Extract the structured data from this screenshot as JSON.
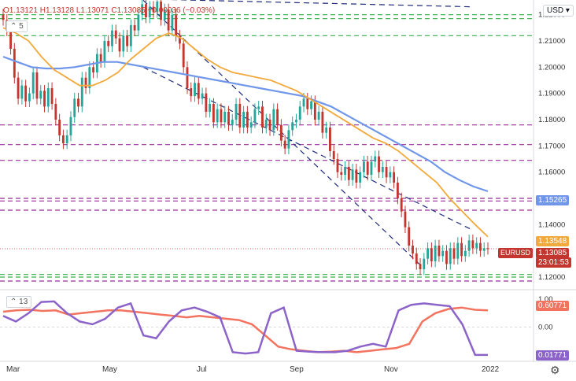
{
  "header": {
    "open": "O1.13121",
    "high": "H1.13128",
    "low": "L1.13071",
    "close": "C1.13085",
    "change": "−0.00036 (−0.03%)",
    "sma_len": "5",
    "osc_len": "13",
    "currency": "USD"
  },
  "tags": {
    "price_level": "1.15265",
    "ma_level": "1.13548",
    "symbol": "EURUSD",
    "last_price": "1.13085",
    "countdown": "23:01:53",
    "osc_a": "0.60771",
    "osc_b": "0.01771"
  },
  "colors": {
    "up": "#26a69a",
    "down": "#c2362f",
    "sma_fast": "#f2a93b",
    "sma_slow": "#6f96e8",
    "channel": "#1f2a7a",
    "green_level": "#36b04a",
    "purple_level": "#9b2a9b",
    "osc_a": "#f2735f",
    "osc_b": "#8b63c9"
  },
  "chart_data": {
    "type": "line",
    "symbol": "EURUSD",
    "y_ticks": [
      "1.22000",
      "1.21000",
      "1.20000",
      "1.19000",
      "1.18000",
      "1.17000",
      "1.16000",
      "1.15000",
      "1.14000",
      "1.12000"
    ],
    "ylim": [
      1.117,
      1.225
    ],
    "x_ticks": [
      "Mar",
      "May",
      "Jul",
      "Sep",
      "Nov",
      "2022"
    ],
    "osc_ticks": [
      "1.00",
      "0.00",
      "-1.00"
    ],
    "osc_ylim": [
      -1.2,
      1.2
    ],
    "horizontal_levels": {
      "green": [
        1.22,
        1.2185,
        1.212,
        1.121,
        1.12
      ],
      "purple": [
        1.178,
        1.1705,
        1.1645,
        1.15,
        1.149,
        1.1455,
        1.1185
      ]
    },
    "close_path": [
      1.218,
      1.214,
      1.207,
      1.196,
      1.188,
      1.193,
      1.187,
      1.19,
      1.198,
      1.188,
      1.191,
      1.185,
      1.192,
      1.186,
      1.18,
      1.174,
      1.171,
      1.174,
      1.181,
      1.188,
      1.185,
      1.196,
      1.192,
      1.2,
      1.198,
      1.205,
      1.202,
      1.21,
      1.208,
      1.214,
      1.211,
      1.206,
      1.212,
      1.208,
      1.216,
      1.214,
      1.22,
      1.224,
      1.219,
      1.223,
      1.221,
      1.225,
      1.218,
      1.222,
      1.214,
      1.22,
      1.212,
      1.209,
      1.2,
      1.192,
      1.189,
      1.194,
      1.188,
      1.19,
      1.183,
      1.186,
      1.179,
      1.184,
      1.179,
      1.183,
      1.178,
      1.18,
      1.186,
      1.177,
      1.183,
      1.177,
      1.179,
      1.184,
      1.185,
      1.177,
      1.18,
      1.176,
      1.184,
      1.178,
      1.172,
      1.169,
      1.176,
      1.179,
      1.18,
      1.185,
      1.188,
      1.184,
      1.187,
      1.18,
      1.183,
      1.175,
      1.177,
      1.168,
      1.165,
      1.16,
      1.159,
      1.162,
      1.157,
      1.161,
      1.156,
      1.16,
      1.164,
      1.159,
      1.164,
      1.166,
      1.16,
      1.162,
      1.158,
      1.16,
      1.156,
      1.15,
      1.145,
      1.139,
      1.132,
      1.129,
      1.125,
      1.123,
      1.127,
      1.131,
      1.126,
      1.132,
      1.128,
      1.13,
      1.125,
      1.131,
      1.127,
      1.133,
      1.128,
      1.13,
      1.134,
      1.131,
      1.133,
      1.13,
      1.131,
      1.1308
    ],
    "sma_fast": [
      1.215,
      1.213,
      1.21,
      1.204,
      1.199,
      1.196,
      1.193,
      1.193,
      1.195,
      1.198,
      1.203,
      1.207,
      1.211,
      1.213,
      1.211,
      1.207,
      1.203,
      1.2,
      1.198,
      1.197,
      1.196,
      1.195,
      1.193,
      1.191,
      1.188,
      1.185,
      1.182,
      1.179,
      1.176,
      1.173,
      1.171,
      1.168,
      1.164,
      1.16,
      1.156,
      1.15,
      1.145,
      1.14,
      1.1354
    ],
    "sma_slow": [
      1.204,
      1.202,
      1.2,
      1.1995,
      1.1995,
      1.2,
      1.201,
      1.202,
      1.202,
      1.201,
      1.2,
      1.199,
      1.198,
      1.197,
      1.196,
      1.195,
      1.194,
      1.193,
      1.192,
      1.191,
      1.19,
      1.189,
      1.187,
      1.185,
      1.182,
      1.179,
      1.176,
      1.173,
      1.17,
      1.167,
      1.164,
      1.16,
      1.157,
      1.1545,
      1.1527
    ],
    "channel_lines": [
      {
        "from": [
          1.2255,
          "May"
        ],
        "to": [
          1.1235,
          "Nov"
        ]
      },
      {
        "from": [
          1.2,
          "May"
        ],
        "to": [
          1.138,
          "2022"
        ]
      },
      {
        "from": [
          1.226,
          "May"
        ],
        "to": [
          1.223,
          "2022"
        ]
      }
    ],
    "osc_a": [
      0.55,
      0.6,
      0.62,
      0.58,
      0.6,
      0.45,
      0.5,
      0.55,
      0.6,
      0.6,
      0.55,
      0.5,
      0.45,
      0.4,
      0.35,
      0.4,
      0.35,
      0.3,
      0.25,
      0.1,
      -0.3,
      -0.7,
      -0.8,
      -0.85,
      -0.9,
      -0.88,
      -0.85,
      -0.9,
      -0.85,
      -0.8,
      -0.75,
      -0.6,
      0.2,
      0.5,
      0.65,
      0.7,
      0.62,
      0.6
    ],
    "osc_b": [
      0.4,
      0.2,
      0.5,
      0.9,
      0.92,
      0.5,
      0.2,
      0.1,
      0.3,
      0.7,
      0.85,
      -0.3,
      -0.4,
      0.2,
      0.6,
      0.7,
      0.55,
      0.35,
      -0.9,
      -0.95,
      -0.9,
      0.5,
      0.7,
      -0.85,
      -0.88,
      -0.9,
      -0.9,
      -0.85,
      -0.7,
      -0.6,
      -0.7,
      0.6,
      0.8,
      0.85,
      0.8,
      0.75,
      0.1,
      -1.0,
      -1.0
    ]
  }
}
